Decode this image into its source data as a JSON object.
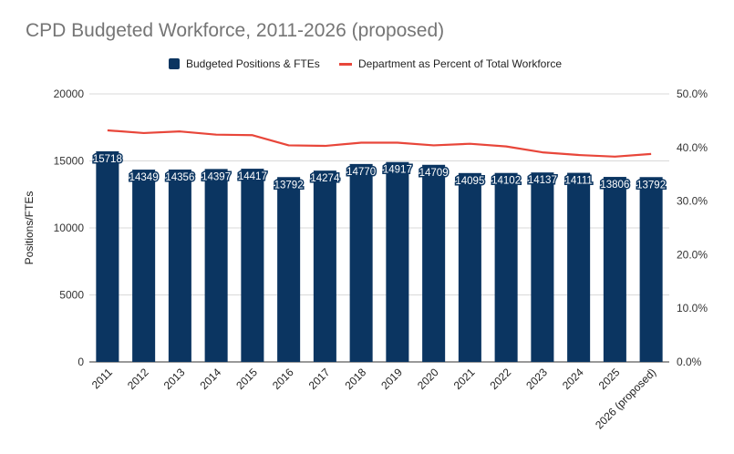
{
  "colors": {
    "bar": "#0b3561",
    "line": "#e8463a",
    "grid": "#d9d9d9",
    "axis": "#333333"
  },
  "chart_data": {
    "type": "bar",
    "title": "CPD Budgeted Workforce, 2011-2026 (proposed)",
    "xlabel": "",
    "ylabel": "Positions/FTEs",
    "y2label": "",
    "ylim": [
      0,
      20000
    ],
    "y2lim": [
      0,
      0.5
    ],
    "yticks": [
      "0",
      "5000",
      "10000",
      "15000",
      "20000"
    ],
    "y2ticks": [
      "0.0%",
      "10.0%",
      "20.0%",
      "30.0%",
      "40.0%",
      "50.0%"
    ],
    "grid": true,
    "legend_position": "top",
    "categories": [
      "2011",
      "2012",
      "2013",
      "2014",
      "2015",
      "2016",
      "2017",
      "2018",
      "2019",
      "2020",
      "2021",
      "2022",
      "2023",
      "2024",
      "2025",
      "2026 (proposed)"
    ],
    "series": [
      {
        "name": "Budgeted Positions & FTEs",
        "type": "bar",
        "axis": "left",
        "values": [
          15718,
          14349,
          14356,
          14397,
          14417,
          13792,
          14274,
          14770,
          14917,
          14709,
          14095,
          14102,
          14137,
          14111,
          13806,
          13792
        ]
      },
      {
        "name": "Department as Percent of Total Workforce",
        "type": "line",
        "axis": "right",
        "values": [
          0.432,
          0.427,
          0.43,
          0.424,
          0.423,
          0.404,
          0.403,
          0.409,
          0.409,
          0.404,
          0.407,
          0.402,
          0.391,
          0.386,
          0.383,
          0.388
        ]
      }
    ]
  }
}
